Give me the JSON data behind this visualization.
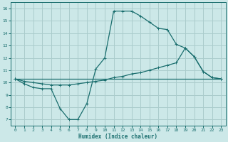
{
  "xlabel": "Humidex (Indice chaleur)",
  "bg_color": "#cce8e8",
  "grid_color": "#aacccc",
  "line_color": "#1a6e6e",
  "xlim": [
    -0.5,
    23.5
  ],
  "ylim": [
    6.5,
    16.5
  ],
  "xticks": [
    0,
    1,
    2,
    3,
    4,
    5,
    6,
    7,
    8,
    9,
    10,
    11,
    12,
    13,
    14,
    15,
    16,
    17,
    18,
    19,
    20,
    21,
    22,
    23
  ],
  "yticks": [
    7,
    8,
    9,
    10,
    11,
    12,
    13,
    14,
    15,
    16
  ],
  "line1_x": [
    0,
    1,
    2,
    3,
    4,
    5,
    6,
    7,
    8,
    9,
    10,
    11,
    12,
    13,
    14,
    15,
    16,
    17,
    18,
    19,
    20,
    21,
    22,
    23
  ],
  "line1_y": [
    10.3,
    9.9,
    9.6,
    9.5,
    9.5,
    7.9,
    7.0,
    7.0,
    8.3,
    11.1,
    12.0,
    15.8,
    15.8,
    15.8,
    15.4,
    14.9,
    14.4,
    14.3,
    13.1,
    12.8,
    12.1,
    10.9,
    10.4,
    10.3
  ],
  "line2_x": [
    0,
    1,
    2,
    3,
    4,
    5,
    6,
    7,
    8,
    9,
    10,
    11,
    12,
    13,
    14,
    15,
    16,
    17,
    18,
    19,
    20,
    21,
    22,
    23
  ],
  "line2_y": [
    10.3,
    10.1,
    10.0,
    9.9,
    9.8,
    9.8,
    9.8,
    9.9,
    10.0,
    10.1,
    10.2,
    10.4,
    10.5,
    10.7,
    10.8,
    11.0,
    11.2,
    11.4,
    11.6,
    12.8,
    12.1,
    10.9,
    10.4,
    10.3
  ],
  "line3_x": [
    0,
    23
  ],
  "line3_y": [
    10.3,
    10.3
  ]
}
